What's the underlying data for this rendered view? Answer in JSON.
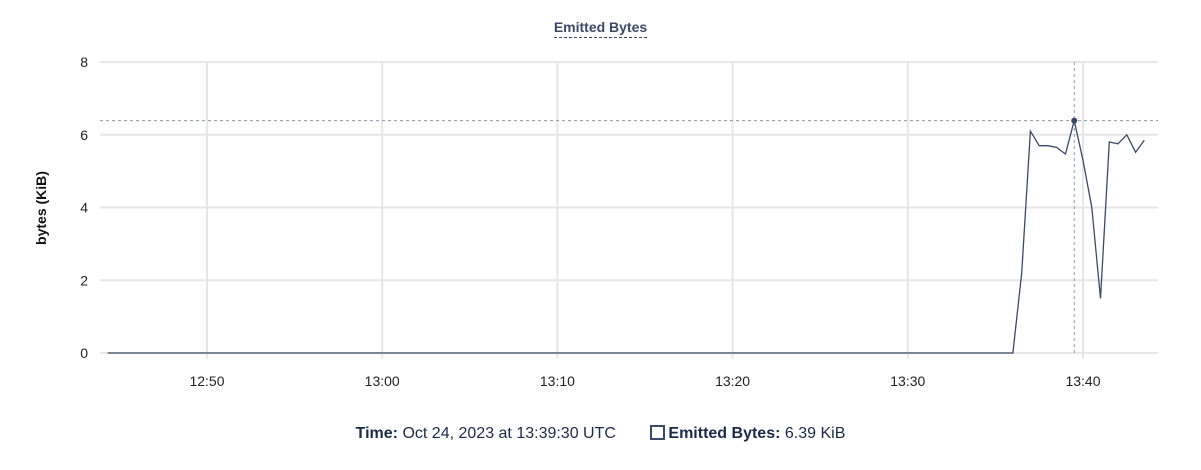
{
  "chart_data": {
    "type": "line",
    "title": "Emitted Bytes",
    "ylabel": "bytes (KiB)",
    "xlabel": "",
    "ylim": [
      0,
      8
    ],
    "yticks": [
      "0",
      "2",
      "4",
      "6",
      "8"
    ],
    "xticks": [
      "12:50",
      "13:00",
      "13:10",
      "13:20",
      "13:30",
      "13:40"
    ],
    "xlim": [
      "12:44:20",
      "13:44:15"
    ],
    "grid": true,
    "series": [
      {
        "name": "Emitted Bytes",
        "color": "#3b4a63",
        "points": [
          [
            "12:44:20",
            0
          ],
          [
            "13:36:00",
            0
          ],
          [
            "13:36:30",
            2.2
          ],
          [
            "13:37:00",
            6.1
          ],
          [
            "13:37:30",
            5.7
          ],
          [
            "13:38:00",
            5.7
          ],
          [
            "13:38:30",
            5.65
          ],
          [
            "13:39:00",
            5.47
          ],
          [
            "13:39:30",
            6.39
          ],
          [
            "13:40:00",
            5.3
          ],
          [
            "13:40:30",
            4.0
          ],
          [
            "13:41:00",
            1.5
          ],
          [
            "13:41:30",
            5.8
          ],
          [
            "13:42:00",
            5.75
          ],
          [
            "13:42:30",
            6.0
          ],
          [
            "13:43:00",
            5.52
          ],
          [
            "13:43:30",
            5.85
          ]
        ]
      }
    ],
    "hover": {
      "time": "13:39:30",
      "value": 6.39
    }
  },
  "legend": {
    "time_label": "Time:",
    "time_value": "Oct 24, 2023 at 13:39:30 UTC",
    "series_label": "Emitted Bytes:",
    "series_value": "6.39 KiB"
  }
}
